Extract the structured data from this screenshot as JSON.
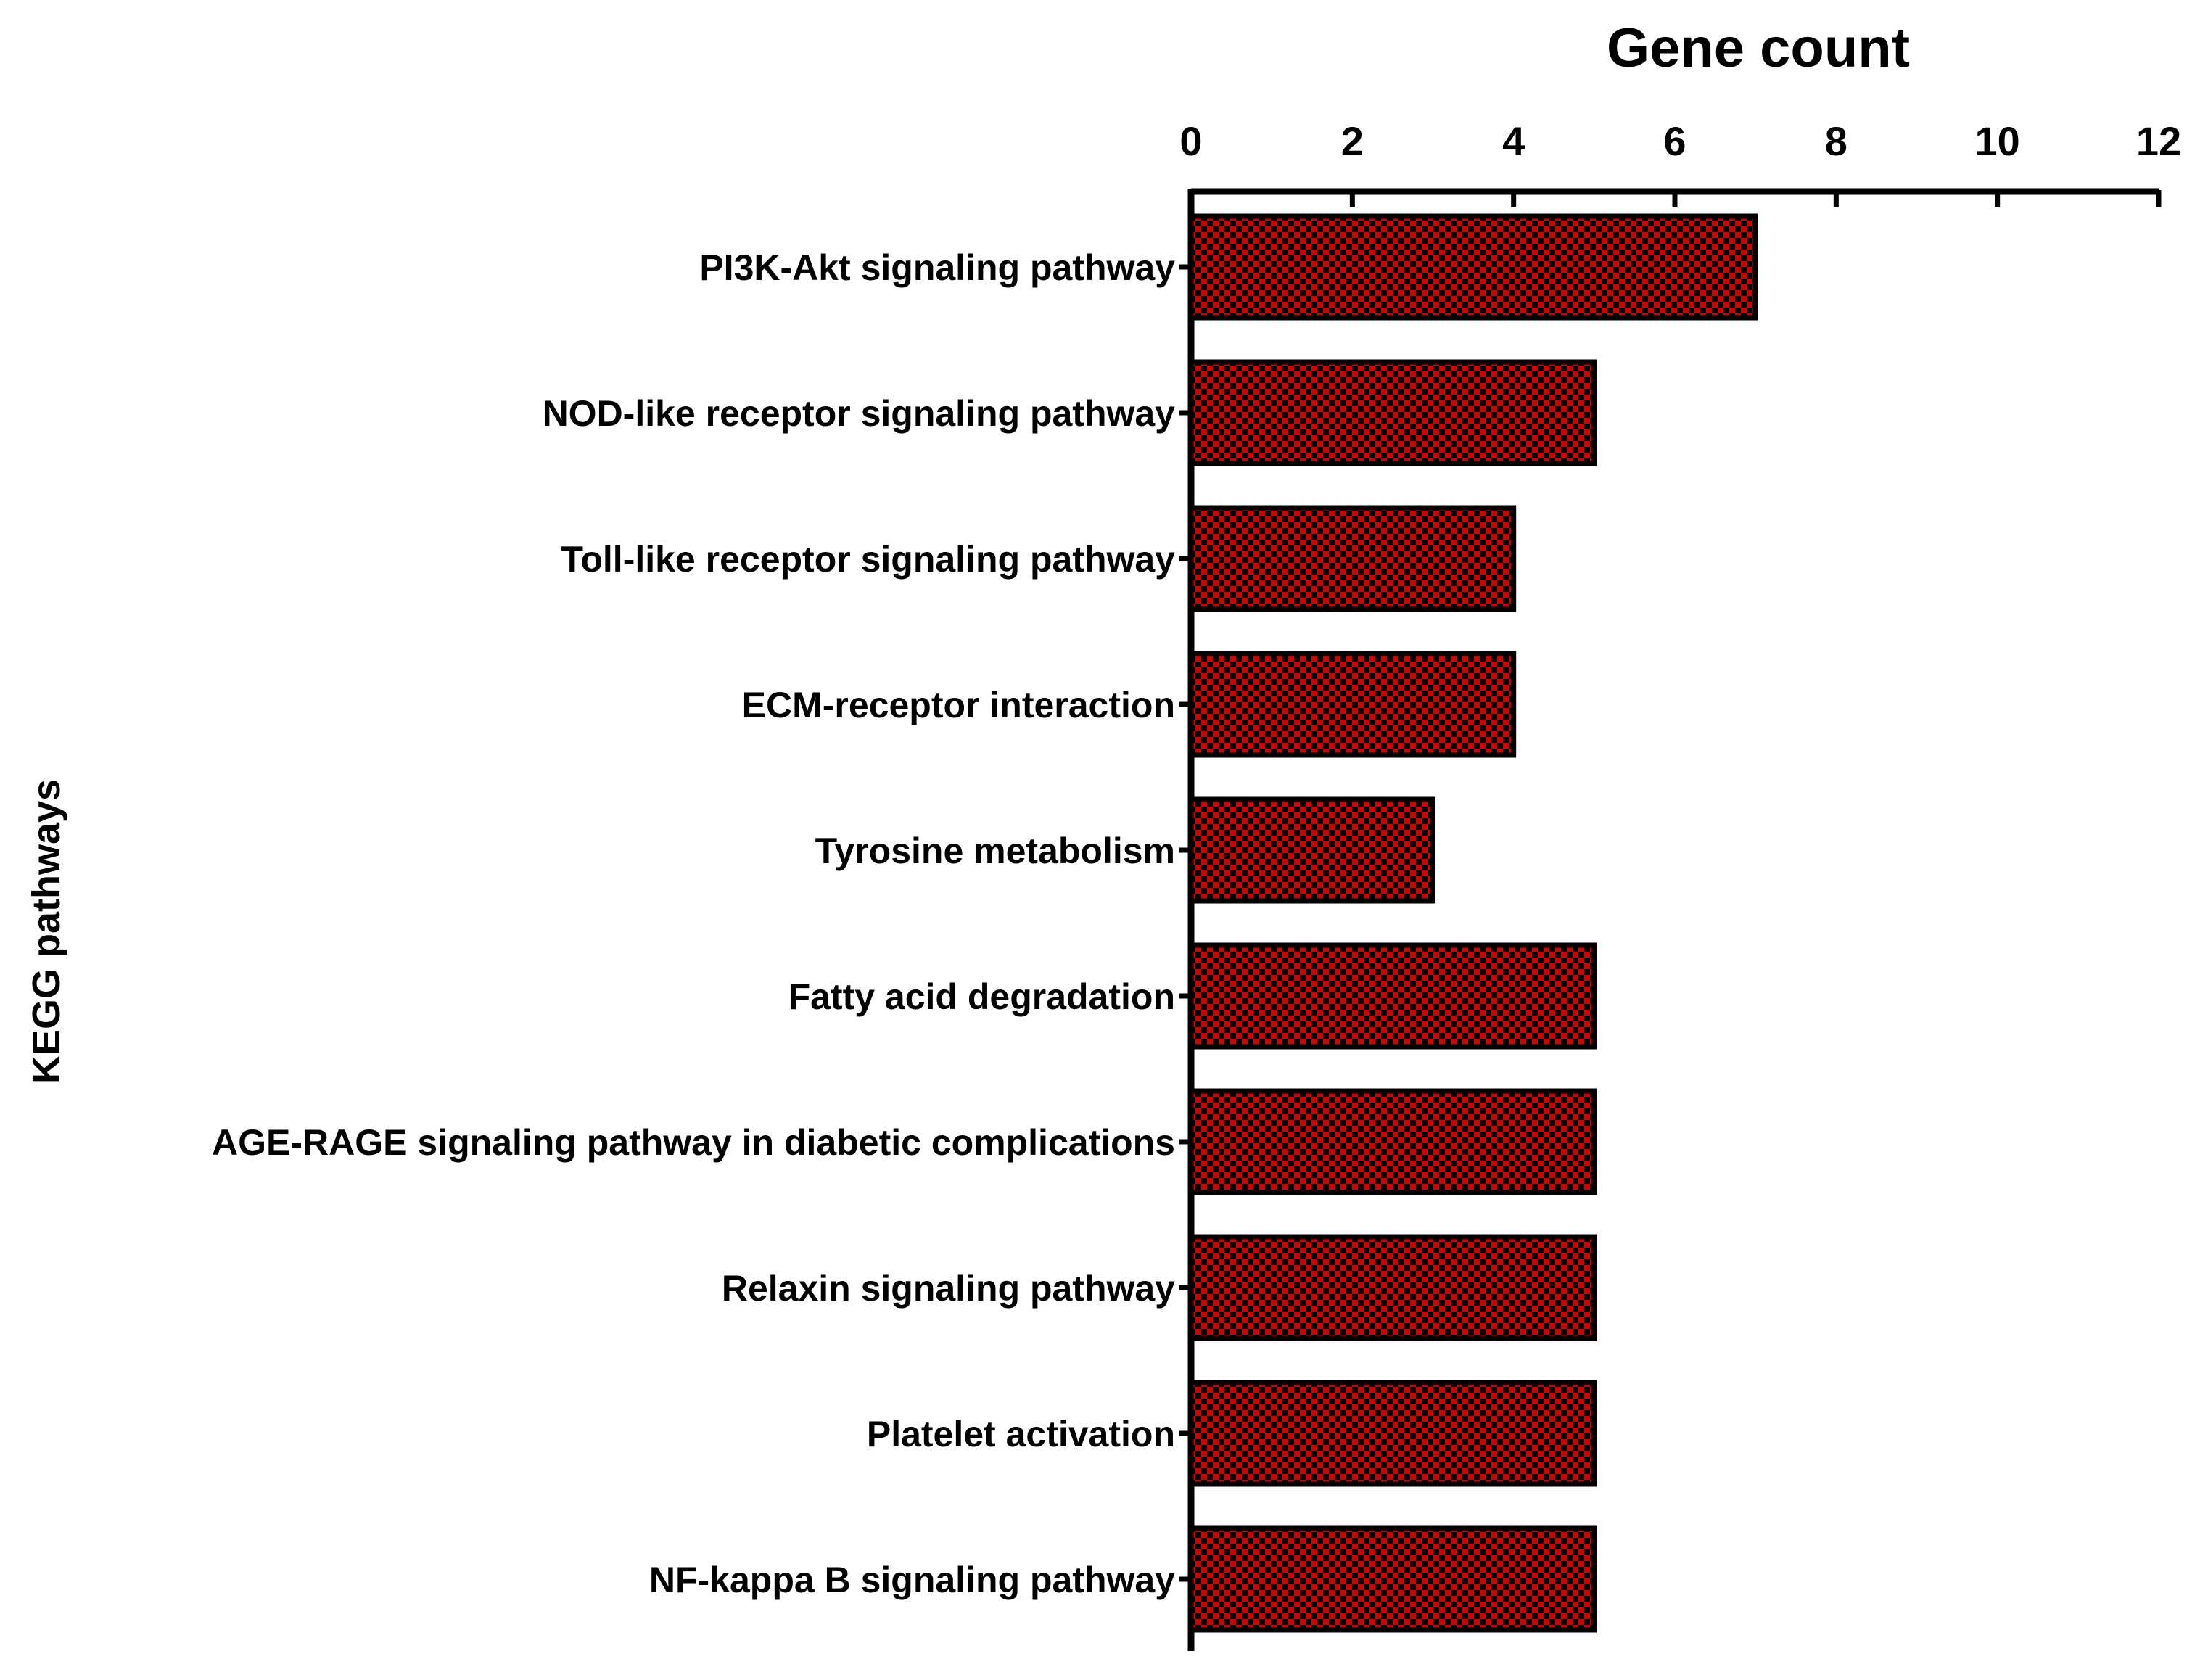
{
  "chart_data": {
    "type": "bar",
    "orientation": "horizontal",
    "xlabel": "Gene count",
    "ylabel": "KEGG pathways",
    "xlim": [
      0,
      12
    ],
    "xticks": [
      0,
      2,
      4,
      6,
      8,
      10,
      12
    ],
    "x_axis_position": "top",
    "grid": false,
    "legend": "none",
    "categories": [
      "PI3K-Akt signaling pathway",
      "NOD-like receptor signaling pathway",
      "Toll-like receptor signaling pathway",
      "ECM-receptor interaction",
      "Tyrosine metabolism",
      "Fatty acid degradation",
      "AGE-RAGE signaling pathway in diabetic complications",
      "Relaxin signaling pathway",
      "Platelet activation",
      "NF-kappa B signaling pathway"
    ],
    "values": [
      7,
      5,
      4,
      4,
      3,
      5,
      5,
      5,
      5,
      5
    ],
    "colors": {
      "bar_fill": "#d40000",
      "bar_pattern": "#000000",
      "axis": "#000000"
    }
  }
}
